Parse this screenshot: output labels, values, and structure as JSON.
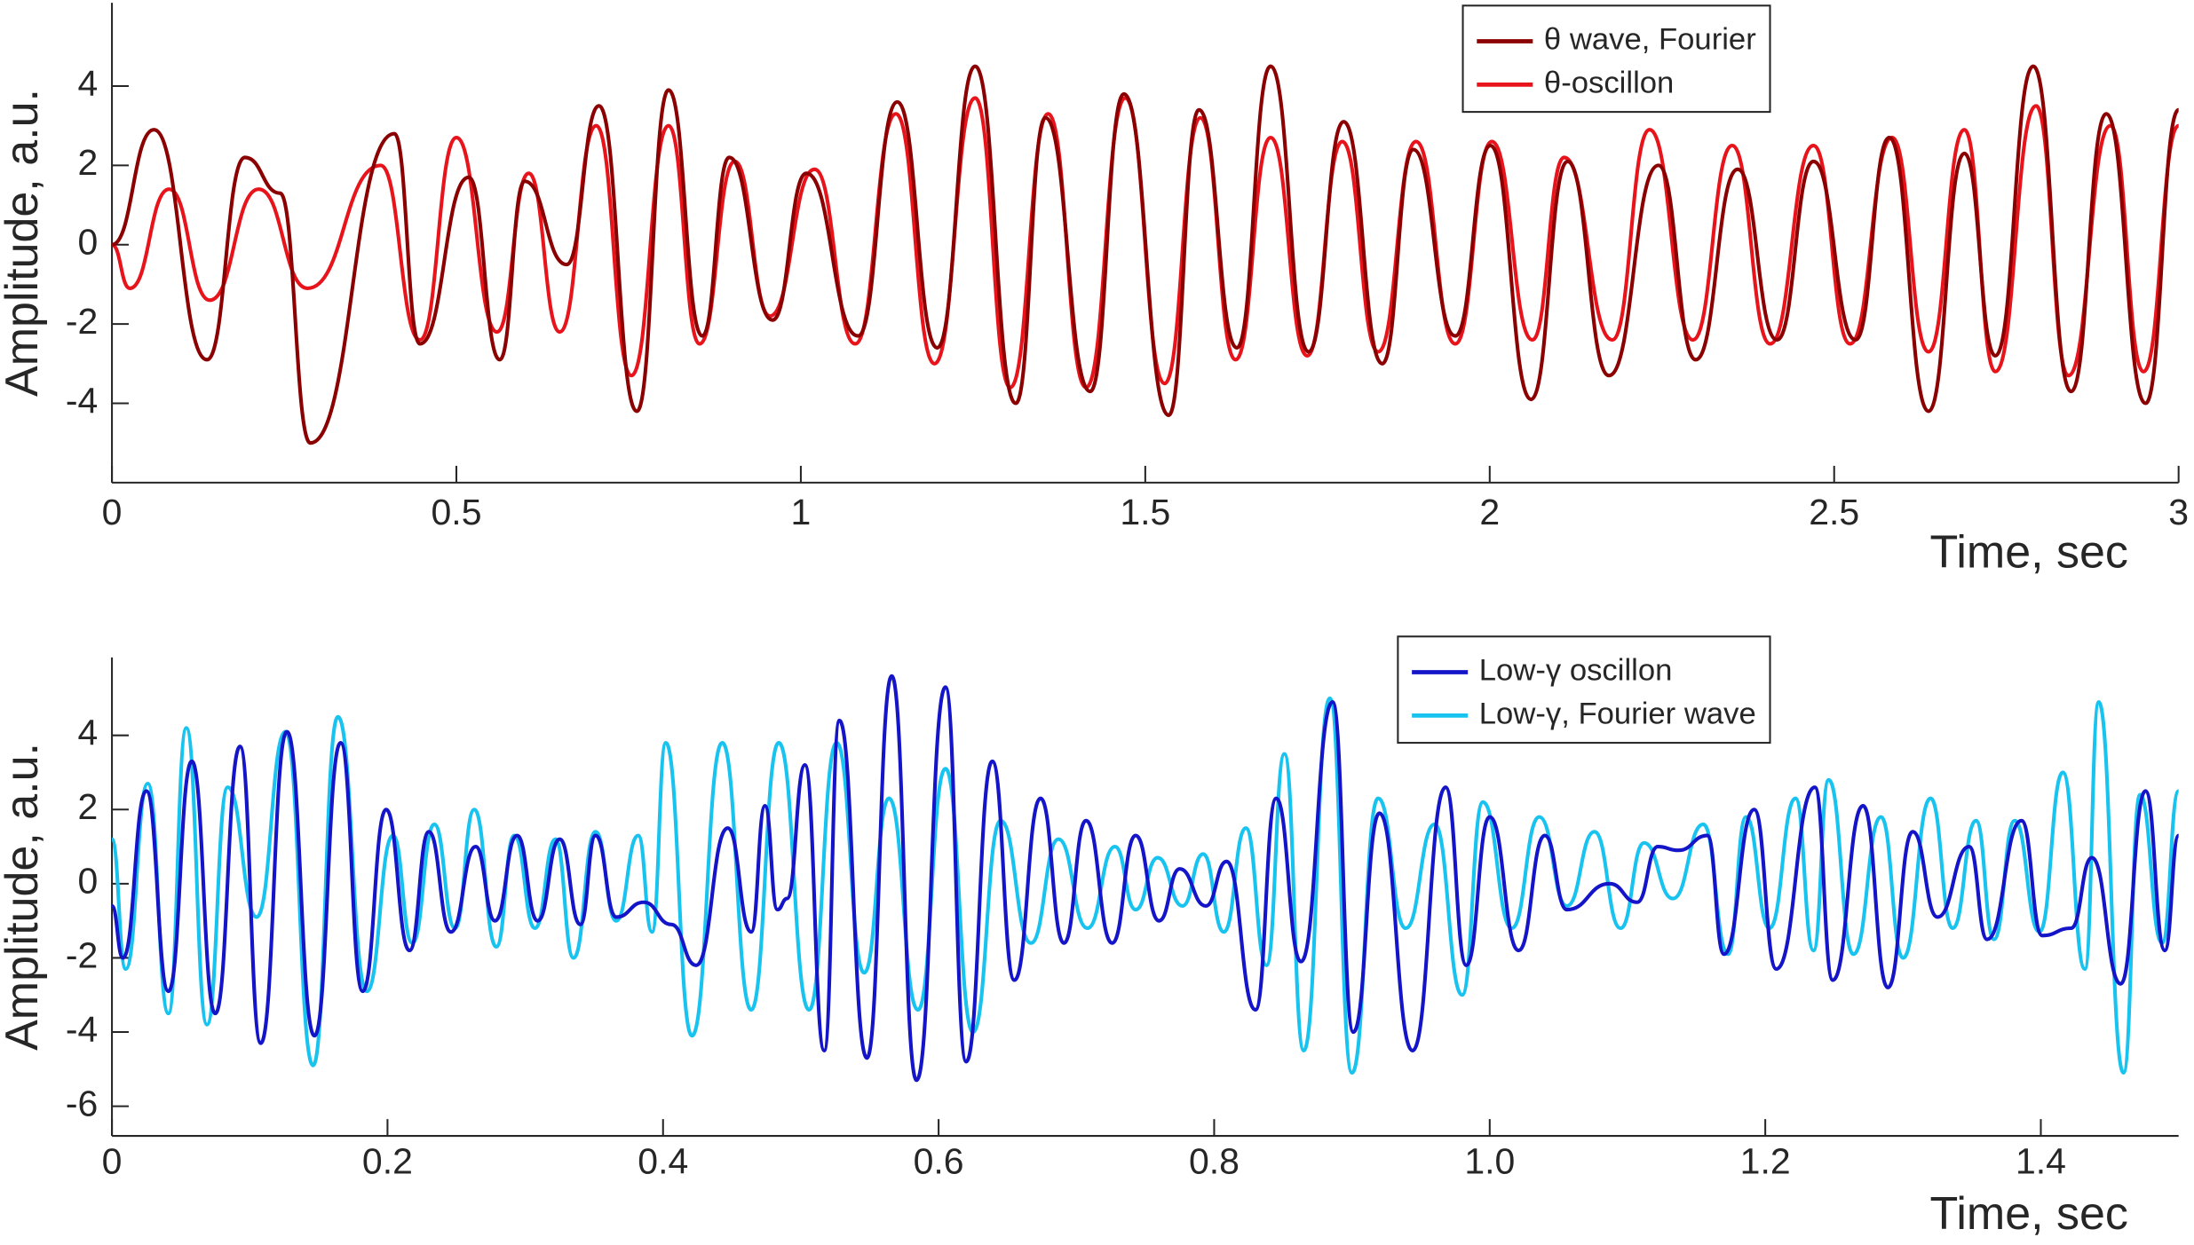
{
  "chart_data": [
    {
      "type": "line",
      "xlabel": "Time, sec",
      "ylabel": "Amplitude, a.u.",
      "xlim": [
        0,
        3
      ],
      "ylim": [
        -6,
        6.1
      ],
      "xticks": [
        0,
        0.5,
        1,
        1.5,
        2,
        2.5,
        3
      ],
      "yticks": [
        -4,
        -2,
        0,
        2,
        4
      ],
      "legend": "upper right",
      "series": [
        {
          "name": "θ wave, Fourier",
          "color": "#8b0000",
          "x": [
            0,
            0.061,
            0.138,
            0.193,
            0.244,
            0.288,
            0.41,
            0.447,
            0.518,
            0.563,
            0.599,
            0.66,
            0.707,
            0.762,
            0.808,
            0.857,
            0.896,
            0.959,
            1.008,
            1.083,
            1.14,
            1.198,
            1.253,
            1.312,
            1.355,
            1.42,
            1.469,
            1.534,
            1.578,
            1.633,
            1.682,
            1.737,
            1.788,
            1.844,
            1.889,
            1.95,
            2.001,
            2.06,
            2.113,
            2.173,
            2.245,
            2.299,
            2.36,
            2.417,
            2.47,
            2.531,
            2.58,
            2.637,
            2.689,
            2.734,
            2.789,
            2.844,
            2.895,
            2.952,
            3.0
          ],
          "values": [
            0,
            2.9,
            -2.9,
            2.2,
            1.3,
            -5.0,
            2.8,
            -2.5,
            1.7,
            -2.9,
            1.6,
            -0.5,
            3.5,
            -4.2,
            3.9,
            -2.3,
            2.2,
            -1.9,
            1.8,
            -2.3,
            3.6,
            -2.6,
            4.5,
            -4.0,
            3.2,
            -3.7,
            3.8,
            -4.3,
            3.4,
            -2.6,
            4.5,
            -2.7,
            3.1,
            -3.0,
            2.4,
            -2.3,
            2.5,
            -3.9,
            2.1,
            -3.3,
            2.0,
            -2.9,
            1.9,
            -2.4,
            2.1,
            -2.4,
            2.7,
            -4.2,
            2.3,
            -2.8,
            4.5,
            -3.7,
            3.3,
            -4.0,
            3.4
          ]
        },
        {
          "name": "θ-oscillon",
          "color": "#e8141c",
          "x": [
            0,
            0.026,
            0.083,
            0.142,
            0.213,
            0.284,
            0.39,
            0.447,
            0.5,
            0.559,
            0.605,
            0.65,
            0.703,
            0.754,
            0.808,
            0.853,
            0.904,
            0.955,
            1.02,
            1.079,
            1.138,
            1.194,
            1.253,
            1.304,
            1.359,
            1.414,
            1.471,
            1.528,
            1.58,
            1.631,
            1.682,
            1.735,
            1.786,
            1.838,
            1.893,
            1.95,
            2.003,
            2.062,
            2.108,
            2.178,
            2.232,
            2.295,
            2.352,
            2.407,
            2.47,
            2.523,
            2.584,
            2.637,
            2.689,
            2.734,
            2.793,
            2.84,
            2.901,
            2.949,
            3.0
          ],
          "values": [
            0,
            -1.1,
            1.4,
            -1.4,
            1.4,
            -1.1,
            2.0,
            -2.4,
            2.7,
            -2.2,
            1.8,
            -2.2,
            3.0,
            -3.3,
            3.0,
            -2.5,
            2.1,
            -1.8,
            1.9,
            -2.5,
            3.3,
            -3.0,
            3.7,
            -3.6,
            3.3,
            -3.6,
            3.7,
            -3.5,
            3.2,
            -2.9,
            2.7,
            -2.8,
            2.6,
            -2.7,
            2.6,
            -2.5,
            2.6,
            -2.4,
            2.2,
            -2.4,
            2.9,
            -2.4,
            2.5,
            -2.5,
            2.5,
            -2.5,
            2.7,
            -2.7,
            2.9,
            -3.2,
            3.5,
            -3.3,
            3.0,
            -3.2,
            3.0
          ]
        }
      ]
    },
    {
      "type": "line",
      "xlabel": "Time, sec",
      "ylabel": "Amplitude, a.u.",
      "xlim": [
        0,
        1.5
      ],
      "ylim": [
        -6.8,
        6.1
      ],
      "xticks": [
        0,
        0.2,
        0.4,
        0.6,
        0.8,
        {
          "value": 1,
          "label": "1.0"
        },
        1.2,
        1.4
      ],
      "yticks": [
        -6,
        -4,
        -2,
        0,
        2,
        4
      ],
      "legend": "upper right",
      "series": [
        {
          "name": "Low-γ oscillon",
          "color": "#1414c8",
          "x": [
            0,
            0.008,
            0.025,
            0.041,
            0.058,
            0.075,
            0.093,
            0.108,
            0.127,
            0.147,
            0.166,
            0.182,
            0.199,
            0.216,
            0.23,
            0.246,
            0.264,
            0.278,
            0.294,
            0.309,
            0.325,
            0.34,
            0.351,
            0.366,
            0.386,
            0.406,
            0.424,
            0.447,
            0.464,
            0.474,
            0.483,
            0.49,
            0.503,
            0.517,
            0.528,
            0.548,
            0.566,
            0.584,
            0.605,
            0.62,
            0.639,
            0.655,
            0.674,
            0.691,
            0.707,
            0.726,
            0.743,
            0.76,
            0.775,
            0.794,
            0.809,
            0.83,
            0.845,
            0.863,
            0.886,
            0.901,
            0.92,
            0.944,
            0.968,
            0.983,
            1.0,
            1.021,
            1.04,
            1.056,
            1.087,
            1.107,
            1.122,
            1.137,
            1.158,
            1.17,
            1.192,
            1.208,
            1.236,
            1.249,
            1.271,
            1.289,
            1.307,
            1.325,
            1.348,
            1.361,
            1.386,
            1.401,
            1.422,
            1.437,
            1.458,
            1.476,
            1.49,
            1.5
          ],
          "values": [
            -0.6,
            -2.0,
            2.5,
            -2.9,
            3.3,
            -3.5,
            3.7,
            -4.3,
            4.1,
            -4.1,
            3.8,
            -2.9,
            2.0,
            -1.8,
            1.4,
            -1.3,
            1.0,
            -1.0,
            1.3,
            -1.0,
            1.2,
            -1.1,
            1.3,
            -0.9,
            -0.5,
            -1.1,
            -2.2,
            1.5,
            -1.3,
            2.1,
            -0.7,
            -0.4,
            3.2,
            -4.5,
            4.4,
            -4.7,
            5.6,
            -5.3,
            5.3,
            -4.8,
            3.3,
            -2.6,
            2.3,
            -1.6,
            1.7,
            -1.6,
            1.3,
            -1.0,
            0.4,
            -0.6,
            0.6,
            -3.4,
            2.3,
            -2.1,
            4.9,
            -4.0,
            1.9,
            -4.5,
            2.6,
            -2.2,
            1.8,
            -1.8,
            1.3,
            -0.7,
            0.0,
            -0.5,
            1.0,
            0.9,
            1.3,
            -1.9,
            2.0,
            -2.3,
            2.6,
            -2.6,
            2.1,
            -2.8,
            1.4,
            -0.9,
            1.0,
            -1.5,
            1.7,
            -1.4,
            -1.2,
            0.7,
            -2.7,
            2.5,
            -1.8,
            1.3
          ]
        },
        {
          "name": "Low-γ, Fourier wave",
          "color": "#19c3f0",
          "x": [
            0,
            0.01,
            0.026,
            0.041,
            0.054,
            0.069,
            0.084,
            0.105,
            0.126,
            0.146,
            0.164,
            0.185,
            0.204,
            0.218,
            0.234,
            0.249,
            0.263,
            0.279,
            0.292,
            0.307,
            0.322,
            0.335,
            0.351,
            0.366,
            0.382,
            0.392,
            0.402,
            0.421,
            0.443,
            0.464,
            0.484,
            0.506,
            0.526,
            0.546,
            0.564,
            0.585,
            0.605,
            0.625,
            0.645,
            0.667,
            0.687,
            0.708,
            0.728,
            0.743,
            0.759,
            0.777,
            0.792,
            0.807,
            0.823,
            0.838,
            0.851,
            0.865,
            0.884,
            0.9,
            0.919,
            0.939,
            0.96,
            0.98,
            0.995,
            1.016,
            1.036,
            1.056,
            1.076,
            1.095,
            1.112,
            1.133,
            1.155,
            1.173,
            1.186,
            1.203,
            1.222,
            1.235,
            1.246,
            1.264,
            1.284,
            1.3,
            1.32,
            1.336,
            1.353,
            1.366,
            1.381,
            1.399,
            1.416,
            1.432,
            1.442,
            1.46,
            1.472,
            1.488,
            1.5
          ],
          "values": [
            1.2,
            -2.3,
            2.7,
            -3.5,
            4.2,
            -3.8,
            2.6,
            -0.9,
            4.1,
            -4.9,
            4.5,
            -2.9,
            1.3,
            -1.6,
            1.6,
            -1.2,
            2.0,
            -1.7,
            1.3,
            -1.2,
            1.2,
            -2.0,
            1.4,
            -1.0,
            1.3,
            -1.3,
            3.8,
            -4.1,
            3.8,
            -3.4,
            3.8,
            -3.4,
            3.8,
            -2.4,
            2.3,
            -3.4,
            3.1,
            -4.0,
            1.7,
            -1.6,
            1.2,
            -1.2,
            1.0,
            -0.7,
            0.7,
            -0.6,
            0.8,
            -1.3,
            1.5,
            -2.2,
            3.5,
            -4.5,
            5.0,
            -5.1,
            2.3,
            -1.2,
            1.6,
            -3.0,
            2.2,
            -1.2,
            1.8,
            -0.6,
            1.4,
            -1.2,
            1.1,
            -0.4,
            1.6,
            -1.9,
            1.8,
            -1.2,
            2.3,
            -1.8,
            2.8,
            -1.9,
            1.8,
            -2.0,
            2.3,
            -1.2,
            1.7,
            -1.5,
            1.7,
            -1.3,
            3.0,
            -2.3,
            4.9,
            -5.1,
            2.4,
            -1.6,
            2.5
          ]
        }
      ]
    }
  ]
}
